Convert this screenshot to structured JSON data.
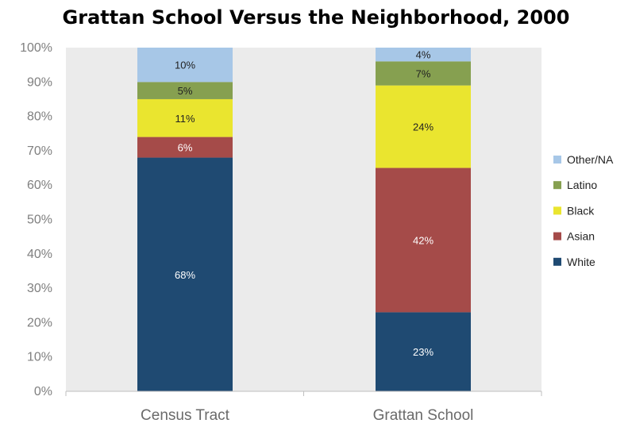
{
  "chart_data": {
    "type": "bar",
    "stacked": true,
    "title": "Grattan School Versus the Neighborhood, 2000",
    "categories": [
      "Census Tract",
      "Grattan School"
    ],
    "series": [
      {
        "name": "White",
        "values": [
          68,
          23
        ],
        "labels": [
          "68%",
          "23%"
        ],
        "color": "#1f4a72",
        "label_color": "#ffffff"
      },
      {
        "name": "Asian",
        "values": [
          6,
          42
        ],
        "labels": [
          "6%",
          "42%"
        ],
        "color": "#a54b49",
        "label_color": "#ffffff"
      },
      {
        "name": "Black",
        "values": [
          11,
          24
        ],
        "labels": [
          "11%",
          "24%"
        ],
        "color": "#eae52f",
        "label_color": "#222222"
      },
      {
        "name": "Latino",
        "values": [
          5,
          7
        ],
        "labels": [
          "5%",
          "7%"
        ],
        "color": "#86a050",
        "label_color": "#222222"
      },
      {
        "name": "Other/NA",
        "values": [
          10,
          4
        ],
        "labels": [
          "10%",
          "4%"
        ],
        "color": "#a7c7e7",
        "label_color": "#222222"
      }
    ],
    "yticks": [
      "0%",
      "10%",
      "20%",
      "30%",
      "40%",
      "50%",
      "60%",
      "70%",
      "80%",
      "90%",
      "100%"
    ],
    "ylim": [
      0,
      100
    ],
    "xlabel": "",
    "ylabel": "",
    "grid": false,
    "legend_position": "right",
    "legend_order": [
      "Other/NA",
      "Latino",
      "Black",
      "Asian",
      "White"
    ]
  }
}
